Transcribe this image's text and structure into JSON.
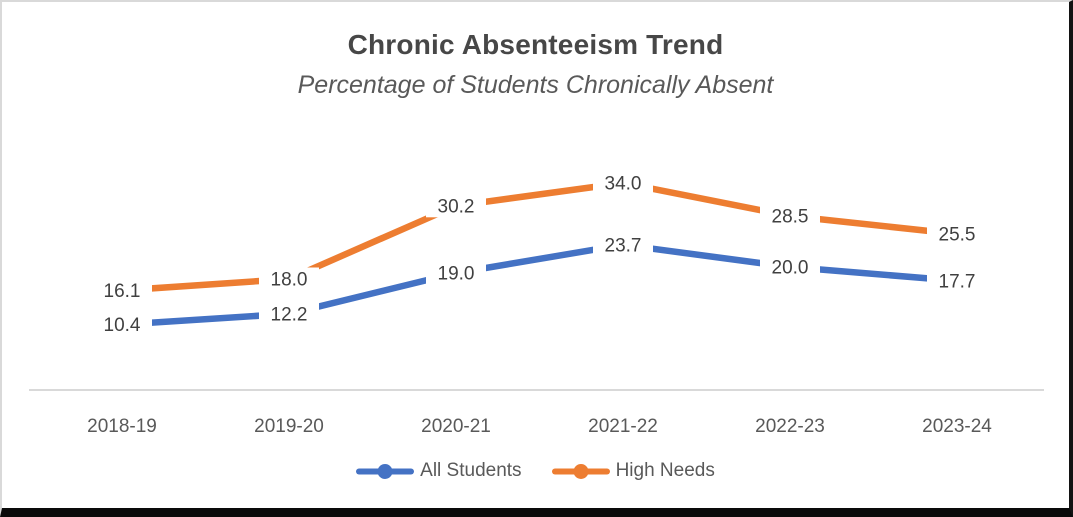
{
  "chart_data": {
    "type": "line",
    "title": "Chronic Absenteeism Trend",
    "subtitle": "Percentage of Students Chronically Absent",
    "categories": [
      "2018-19",
      "2019-20",
      "2020-21",
      "2021-22",
      "2022-23",
      "2023-24"
    ],
    "series": [
      {
        "name": "All Students",
        "values": [
          10.4,
          12.2,
          19.0,
          23.7,
          20.0,
          17.7
        ],
        "color": "#4472C4"
      },
      {
        "name": "High Needs",
        "values": [
          16.1,
          18.0,
          30.2,
          34.0,
          28.5,
          25.5
        ],
        "color": "#ED7D31"
      }
    ],
    "data_labels_visible": true,
    "data_label_decimals": 1,
    "ylim": [
      0,
      40
    ],
    "grid": false,
    "y_axis_visible": false,
    "legend_position": "bottom"
  },
  "style": {
    "axis_line_color": "#D9D9D9",
    "title_color": "#474747",
    "subtitle_color": "#595959",
    "data_label_color": "#404040",
    "axis_label_color": "#595959",
    "legend_label_color": "#595959"
  }
}
